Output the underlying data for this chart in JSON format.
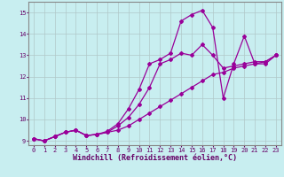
{
  "xlabel": "Windchill (Refroidissement éolien,°C)",
  "background_color": "#c8eef0",
  "grid_color": "#b0c8c8",
  "line_color": "#990099",
  "xlim": [
    -0.5,
    23.5
  ],
  "ylim": [
    8.8,
    15.5
  ],
  "xticks": [
    0,
    1,
    2,
    3,
    4,
    5,
    6,
    7,
    8,
    9,
    10,
    11,
    12,
    13,
    14,
    15,
    16,
    17,
    18,
    19,
    20,
    21,
    22,
    23
  ],
  "yticks": [
    9,
    10,
    11,
    12,
    13,
    14,
    15
  ],
  "series1_x": [
    0,
    1,
    2,
    3,
    4,
    5,
    6,
    7,
    8,
    9,
    10,
    11,
    12,
    13,
    14,
    15,
    16,
    17,
    18,
    19,
    20,
    21,
    22,
    23
  ],
  "series1_y": [
    9.1,
    9.0,
    9.2,
    9.4,
    9.5,
    9.25,
    9.3,
    9.4,
    9.5,
    9.7,
    10.0,
    10.3,
    10.6,
    10.9,
    11.2,
    11.5,
    11.8,
    12.1,
    12.2,
    12.4,
    12.5,
    12.6,
    12.7,
    13.0
  ],
  "series2_x": [
    0,
    1,
    2,
    3,
    4,
    5,
    6,
    7,
    8,
    9,
    10,
    11,
    12,
    13,
    14,
    15,
    16,
    17,
    18,
    19,
    20,
    21,
    22,
    23
  ],
  "series2_y": [
    9.1,
    9.0,
    9.2,
    9.4,
    9.5,
    9.25,
    9.3,
    9.4,
    9.7,
    10.1,
    10.7,
    11.5,
    12.6,
    12.8,
    13.1,
    13.0,
    13.5,
    13.0,
    12.4,
    12.5,
    12.6,
    12.7,
    12.7,
    13.0
  ],
  "series3_x": [
    0,
    1,
    2,
    3,
    4,
    5,
    6,
    7,
    8,
    9,
    10,
    11,
    12,
    13,
    14,
    15,
    16,
    17,
    18,
    19,
    20,
    21,
    22,
    23
  ],
  "series3_y": [
    9.1,
    9.0,
    9.2,
    9.4,
    9.5,
    9.25,
    9.3,
    9.45,
    9.8,
    10.5,
    11.4,
    12.6,
    12.8,
    13.1,
    14.6,
    14.9,
    15.1,
    14.3,
    11.0,
    12.6,
    13.9,
    12.6,
    12.6,
    13.0
  ],
  "marker": "D",
  "markersize": 2.0,
  "linewidth": 0.9,
  "tick_fontsize": 5.0,
  "label_fontsize": 6.0
}
